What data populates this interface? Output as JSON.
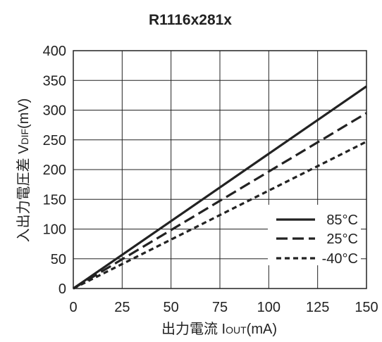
{
  "chart_data": {
    "type": "line",
    "title": "R1116x281x",
    "xlabel": "出力電流 IOUT(mA)",
    "ylabel": "入出力電圧差 VDIF(mV)",
    "xlabel_parts": {
      "prefix": "出力電流 I",
      "sub": "OUT",
      "suffix": "(mA)"
    },
    "ylabel_parts": {
      "prefix": "入出力電圧差 V",
      "sub": "DIF",
      "suffix": "(mV)"
    },
    "xlim": [
      0,
      150
    ],
    "ylim": [
      0,
      400
    ],
    "x_ticks": [
      0,
      25,
      50,
      75,
      100,
      125,
      150
    ],
    "y_ticks": [
      0,
      50,
      100,
      150,
      200,
      250,
      300,
      350,
      400
    ],
    "grid": true,
    "legend_position": "bottom-right",
    "series": [
      {
        "name": "85°C",
        "style": "solid",
        "color": "#222222",
        "x": [
          0,
          150
        ],
        "y": [
          0,
          340
        ]
      },
      {
        "name": "25°C",
        "style": "dashed",
        "color": "#222222",
        "x": [
          0,
          150
        ],
        "y": [
          0,
          295
        ]
      },
      {
        "name": "-40°C",
        "style": "dotted",
        "color": "#222222",
        "x": [
          0,
          150
        ],
        "y": [
          0,
          247
        ]
      }
    ]
  }
}
